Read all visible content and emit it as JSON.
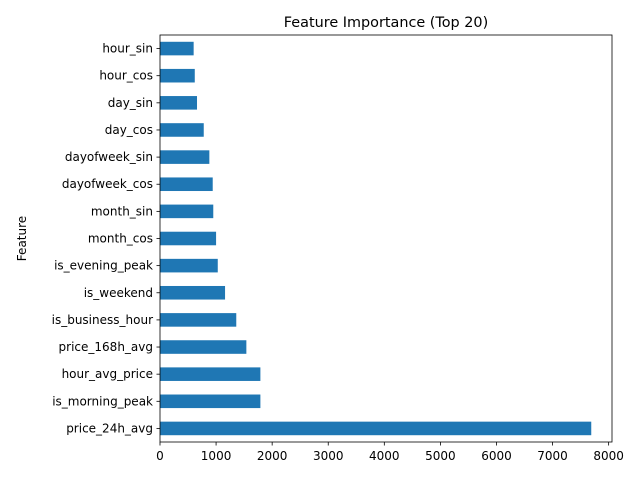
{
  "chart_data": {
    "type": "bar",
    "orientation": "horizontal",
    "title": "Feature Importance (Top 20)",
    "xlabel": "",
    "ylabel": "Feature",
    "xlim": [
      0,
      8060
    ],
    "xticks": [
      0,
      1000,
      2000,
      3000,
      4000,
      5000,
      6000,
      7000,
      8000
    ],
    "xtick_labels": [
      "0",
      "1000",
      "2000",
      "3000",
      "4000",
      "5000",
      "6000",
      "7000",
      "8000"
    ],
    "grid": false,
    "legend": "none",
    "bar_color": "#1f77b4",
    "categories": [
      "hour_sin",
      "hour_cos",
      "day_sin",
      "day_cos",
      "dayofweek_sin",
      "dayofweek_cos",
      "month_sin",
      "month_cos",
      "is_evening_peak",
      "is_weekend",
      "is_business_hour",
      "price_168h_avg",
      "hour_avg_price",
      "is_morning_peak",
      "price_24h_avg"
    ],
    "values": [
      600,
      620,
      660,
      780,
      880,
      940,
      950,
      1000,
      1030,
      1160,
      1360,
      1540,
      1790,
      1790,
      7690
    ]
  }
}
